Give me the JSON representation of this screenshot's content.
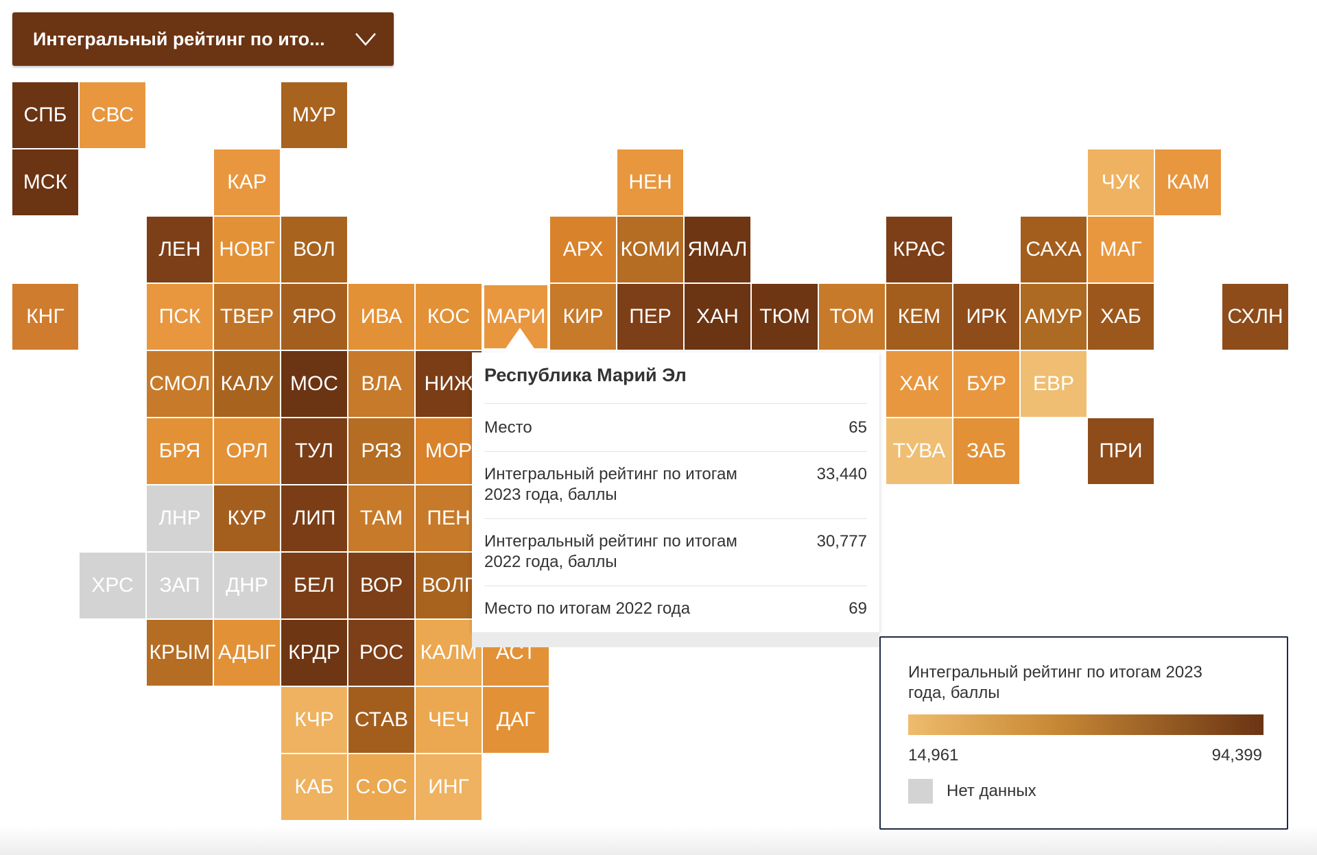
{
  "selector": {
    "label": "Интегральный рейтинг по ито..."
  },
  "colors": {
    "scale_low": "#efbb6c",
    "scale_high": "#6b3413",
    "no_data": "#d3d3d3"
  },
  "chart_data": {
    "type": "tile_map",
    "metric": "Интегральный рейтинг по итогам 2023 года, баллы",
    "min": 14.961,
    "max": 94.399,
    "tiles": [
      {
        "code": "СПБ",
        "row": 0,
        "col": 0,
        "color": "#6b3413"
      },
      {
        "code": "СВС",
        "row": 0,
        "col": 1,
        "color": "#e8973f"
      },
      {
        "code": "МУР",
        "row": 0,
        "col": 4,
        "color": "#a8631f"
      },
      {
        "code": "МСК",
        "row": 1,
        "col": 0,
        "color": "#6b3413"
      },
      {
        "code": "КАР",
        "row": 1,
        "col": 3,
        "color": "#e8973f"
      },
      {
        "code": "НЕН",
        "row": 1,
        "col": 9,
        "color": "#e8973f"
      },
      {
        "code": "ЧУК",
        "row": 1,
        "col": 16,
        "color": "#efb260"
      },
      {
        "code": "КАМ",
        "row": 1,
        "col": 17,
        "color": "#e8973f"
      },
      {
        "code": "ЛЕН",
        "row": 2,
        "col": 2,
        "color": "#7d3f17"
      },
      {
        "code": "НОВГ",
        "row": 2,
        "col": 3,
        "color": "#e39136"
      },
      {
        "code": "ВОЛ",
        "row": 2,
        "col": 4,
        "color": "#a8631f"
      },
      {
        "code": "АРХ",
        "row": 2,
        "col": 8,
        "color": "#d9822c"
      },
      {
        "code": "КОМИ",
        "row": 2,
        "col": 9,
        "color": "#b46d23"
      },
      {
        "code": "ЯМАЛ",
        "row": 2,
        "col": 10,
        "color": "#6e3612"
      },
      {
        "code": "КРАС",
        "row": 2,
        "col": 13,
        "color": "#7d3f17"
      },
      {
        "code": "САХА",
        "row": 2,
        "col": 15,
        "color": "#a35e1e"
      },
      {
        "code": "МАГ",
        "row": 2,
        "col": 16,
        "color": "#e8973f"
      },
      {
        "code": "КНГ",
        "row": 3,
        "col": 0,
        "color": "#cf7c2e"
      },
      {
        "code": "ПСК",
        "row": 3,
        "col": 2,
        "color": "#e8973f"
      },
      {
        "code": "ТВЕР",
        "row": 3,
        "col": 3,
        "color": "#bf7428"
      },
      {
        "code": "ЯРО",
        "row": 3,
        "col": 4,
        "color": "#a45f1f"
      },
      {
        "code": "ИВА",
        "row": 3,
        "col": 5,
        "color": "#e39136"
      },
      {
        "code": "КОС",
        "row": 3,
        "col": 6,
        "color": "#e39136"
      },
      {
        "code": "МАРИ",
        "row": 3,
        "col": 7,
        "color": "#e8973f",
        "highlight": true
      },
      {
        "code": "КИР",
        "row": 3,
        "col": 8,
        "color": "#c77a2a"
      },
      {
        "code": "ПЕР",
        "row": 3,
        "col": 9,
        "color": "#7d3f17"
      },
      {
        "code": "ХАН",
        "row": 3,
        "col": 10,
        "color": "#6b3413"
      },
      {
        "code": "ТЮМ",
        "row": 3,
        "col": 11,
        "color": "#6e3612"
      },
      {
        "code": "ТОМ",
        "row": 3,
        "col": 12,
        "color": "#c77a2a"
      },
      {
        "code": "КЕМ",
        "row": 3,
        "col": 13,
        "color": "#a35e1e"
      },
      {
        "code": "ИРК",
        "row": 3,
        "col": 14,
        "color": "#8e4c1a"
      },
      {
        "code": "АМУР",
        "row": 3,
        "col": 15,
        "color": "#ad6a22"
      },
      {
        "code": "ХАБ",
        "row": 3,
        "col": 16,
        "color": "#9c581c"
      },
      {
        "code": "СХЛН",
        "row": 3,
        "col": 18,
        "color": "#8e4c1a"
      },
      {
        "code": "СМОЛ",
        "row": 4,
        "col": 2,
        "color": "#c77a2a"
      },
      {
        "code": "КАЛУ",
        "row": 4,
        "col": 3,
        "color": "#a8631f"
      },
      {
        "code": "МОС",
        "row": 4,
        "col": 4,
        "color": "#6b3413"
      },
      {
        "code": "ВЛА",
        "row": 4,
        "col": 5,
        "color": "#c77a2a"
      },
      {
        "code": "НИЖ",
        "row": 4,
        "col": 6,
        "color": "#7a3d16"
      },
      {
        "code": "ХАК",
        "row": 4,
        "col": 13,
        "color": "#e8973f"
      },
      {
        "code": "БУР",
        "row": 4,
        "col": 14,
        "color": "#e8973f"
      },
      {
        "code": "ЕВР",
        "row": 4,
        "col": 15,
        "color": "#f0be72"
      },
      {
        "code": "БРЯ",
        "row": 5,
        "col": 2,
        "color": "#e39136"
      },
      {
        "code": "ОРЛ",
        "row": 5,
        "col": 3,
        "color": "#e39136"
      },
      {
        "code": "ТУЛ",
        "row": 5,
        "col": 4,
        "color": "#7a3d16"
      },
      {
        "code": "РЯЗ",
        "row": 5,
        "col": 5,
        "color": "#b46d23"
      },
      {
        "code": "МОР",
        "row": 5,
        "col": 6,
        "color": "#d9822c"
      },
      {
        "code": "ТУВА",
        "row": 5,
        "col": 13,
        "color": "#f0be72"
      },
      {
        "code": "ЗАБ",
        "row": 5,
        "col": 14,
        "color": "#e39136"
      },
      {
        "code": "ПРИ",
        "row": 5,
        "col": 16,
        "color": "#8e4c1a"
      },
      {
        "code": "ЛНР",
        "row": 6,
        "col": 2,
        "color": "#d3d3d3",
        "no_data": true
      },
      {
        "code": "КУР",
        "row": 6,
        "col": 3,
        "color": "#a45f1f"
      },
      {
        "code": "ЛИП",
        "row": 6,
        "col": 4,
        "color": "#7a3d16"
      },
      {
        "code": "ТАМ",
        "row": 6,
        "col": 5,
        "color": "#c77a2a"
      },
      {
        "code": "ПЕН",
        "row": 6,
        "col": 6,
        "color": "#c77a2a"
      },
      {
        "code": "ХРС",
        "row": 7,
        "col": 1,
        "color": "#d3d3d3",
        "no_data": true
      },
      {
        "code": "ЗАП",
        "row": 7,
        "col": 2,
        "color": "#d3d3d3",
        "no_data": true
      },
      {
        "code": "ДНР",
        "row": 7,
        "col": 3,
        "color": "#d3d3d3",
        "no_data": true
      },
      {
        "code": "БЕЛ",
        "row": 7,
        "col": 4,
        "color": "#7a3d16"
      },
      {
        "code": "ВОР",
        "row": 7,
        "col": 5,
        "color": "#7d3f17"
      },
      {
        "code": "ВОЛГ",
        "row": 7,
        "col": 6,
        "color": "#a8631f"
      },
      {
        "code": "КРЫМ",
        "row": 8,
        "col": 2,
        "color": "#b46d23"
      },
      {
        "code": "АДЫГ",
        "row": 8,
        "col": 3,
        "color": "#e39136"
      },
      {
        "code": "КРДР",
        "row": 8,
        "col": 4,
        "color": "#6e3612"
      },
      {
        "code": "РОС",
        "row": 8,
        "col": 5,
        "color": "#7d3f17"
      },
      {
        "code": "КАЛМ",
        "row": 8,
        "col": 6,
        "color": "#eba850"
      },
      {
        "code": "АСТ",
        "row": 8,
        "col": 7,
        "color": "#e39136"
      },
      {
        "code": "КЧР",
        "row": 9,
        "col": 4,
        "color": "#efb260"
      },
      {
        "code": "СТАВ",
        "row": 9,
        "col": 5,
        "color": "#a35e1e"
      },
      {
        "code": "ЧЕЧ",
        "row": 9,
        "col": 6,
        "color": "#eba850"
      },
      {
        "code": "ДАГ",
        "row": 9,
        "col": 7,
        "color": "#e39136"
      },
      {
        "code": "КАБ",
        "row": 10,
        "col": 4,
        "color": "#efb260"
      },
      {
        "code": "С.ОС",
        "row": 10,
        "col": 5,
        "color": "#eba850"
      },
      {
        "code": "ИНГ",
        "row": 10,
        "col": 6,
        "color": "#efb260"
      }
    ]
  },
  "tooltip": {
    "title": "Республика Марий Эл",
    "rows": [
      {
        "label": "Место",
        "value": "65"
      },
      {
        "label": "Интегральный рейтинг по итогам 2023 года, баллы",
        "value": "33,440"
      },
      {
        "label": "Интегральный рейтинг по итогам 2022 года, баллы",
        "value": "30,777"
      },
      {
        "label": "Место по итогам 2022 года",
        "value": "69"
      }
    ]
  },
  "legend": {
    "title": "Интегральный рейтинг по итогам 2023 года, баллы",
    "min_label": "14,961",
    "max_label": "94,399",
    "no_data_label": "Нет данных"
  }
}
